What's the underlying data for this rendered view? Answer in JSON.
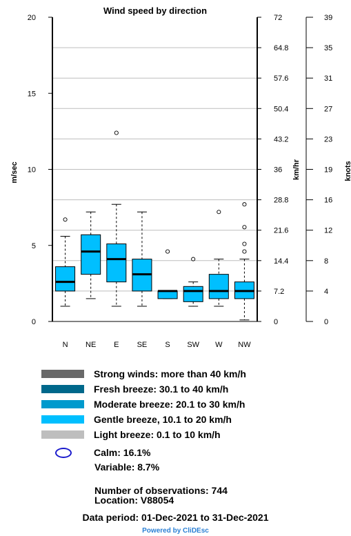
{
  "chart_data": {
    "type": "box",
    "title": "Wind speed by direction",
    "categories": [
      "N",
      "NE",
      "E",
      "SE",
      "S",
      "SW",
      "W",
      "NW"
    ],
    "box_color": "#00bfff",
    "y_axes": [
      {
        "label": "m/sec",
        "side": "left",
        "range": [
          0,
          20
        ],
        "ticks": [
          "0",
          "5",
          "10",
          "15",
          "20"
        ]
      },
      {
        "label": "km/hr",
        "side": "right",
        "range": [
          0,
          72
        ],
        "ticks": [
          "0",
          "7.2",
          "14.4",
          "21.6",
          "28.8",
          "36",
          "43.2",
          "50.4",
          "57.6",
          "64.8",
          "72"
        ]
      },
      {
        "label": "knots",
        "side": "right",
        "range": [
          0,
          39
        ],
        "ticks": [
          "0",
          "4",
          "8",
          "12",
          "16",
          "19",
          "23",
          "27",
          "31",
          "35",
          "39"
        ]
      }
    ],
    "gridlines_kmh": [
      7.2,
      14.4,
      21.6,
      28.8,
      36,
      43.2,
      50.4,
      57.6,
      64.8
    ],
    "boxes": [
      {
        "category": "N",
        "whisker_low": 1.0,
        "q1": 2.0,
        "median": 2.6,
        "q3": 3.6,
        "whisker_high": 5.6,
        "outliers": [
          6.7
        ]
      },
      {
        "category": "NE",
        "whisker_low": 1.5,
        "q1": 3.1,
        "median": 4.6,
        "q3": 5.7,
        "whisker_high": 7.2,
        "outliers": []
      },
      {
        "category": "E",
        "whisker_low": 1.0,
        "q1": 2.6,
        "median": 4.1,
        "q3": 5.1,
        "whisker_high": 7.7,
        "outliers": [
          12.4
        ]
      },
      {
        "category": "SE",
        "whisker_low": 1.0,
        "q1": 2.0,
        "median": 3.1,
        "q3": 4.1,
        "whisker_high": 7.2,
        "outliers": []
      },
      {
        "category": "S",
        "whisker_low": 1.5,
        "q1": 1.5,
        "median": 2.0,
        "q3": 2.0,
        "whisker_high": 2.0,
        "outliers": [
          4.6
        ]
      },
      {
        "category": "SW",
        "whisker_low": 1.0,
        "q1": 1.3,
        "median": 2.0,
        "q3": 2.3,
        "whisker_high": 2.6,
        "outliers": [
          4.1
        ]
      },
      {
        "category": "W",
        "whisker_low": 1.0,
        "q1": 1.5,
        "median": 2.0,
        "q3": 3.1,
        "whisker_high": 4.1,
        "outliers": [
          7.2
        ]
      },
      {
        "category": "NW",
        "whisker_low": 0.1,
        "q1": 1.5,
        "median": 2.0,
        "q3": 2.6,
        "whisker_high": 4.1,
        "outliers": [
          4.6,
          5.1,
          6.2,
          7.7
        ]
      }
    ]
  },
  "legend": [
    {
      "label": "Strong winds: more than 40 km/h",
      "color": "#696969"
    },
    {
      "label": "Fresh breeze: 30.1 to 40 km/h",
      "color": "#00688b"
    },
    {
      "label": "Moderate breeze: 20.1 to 30 km/h",
      "color": "#009acd"
    },
    {
      "label": "Gentle breeze, 10.1 to 20 km/h",
      "color": "#00bfff"
    },
    {
      "label": "Light breeze: 0.1 to 10 km/h",
      "color": "#bebebe"
    }
  ],
  "calm": {
    "label": "Calm: 16.1%",
    "color": "#1a1acc"
  },
  "variable": {
    "label": "Variable: 8.7%"
  },
  "observations": "Number of observations:  744",
  "location": "Location:  V88054",
  "data_period": "Data period: 01-Dec-2021 to 31-Dec-2021",
  "powered_by": "Powered by CliDEsc"
}
